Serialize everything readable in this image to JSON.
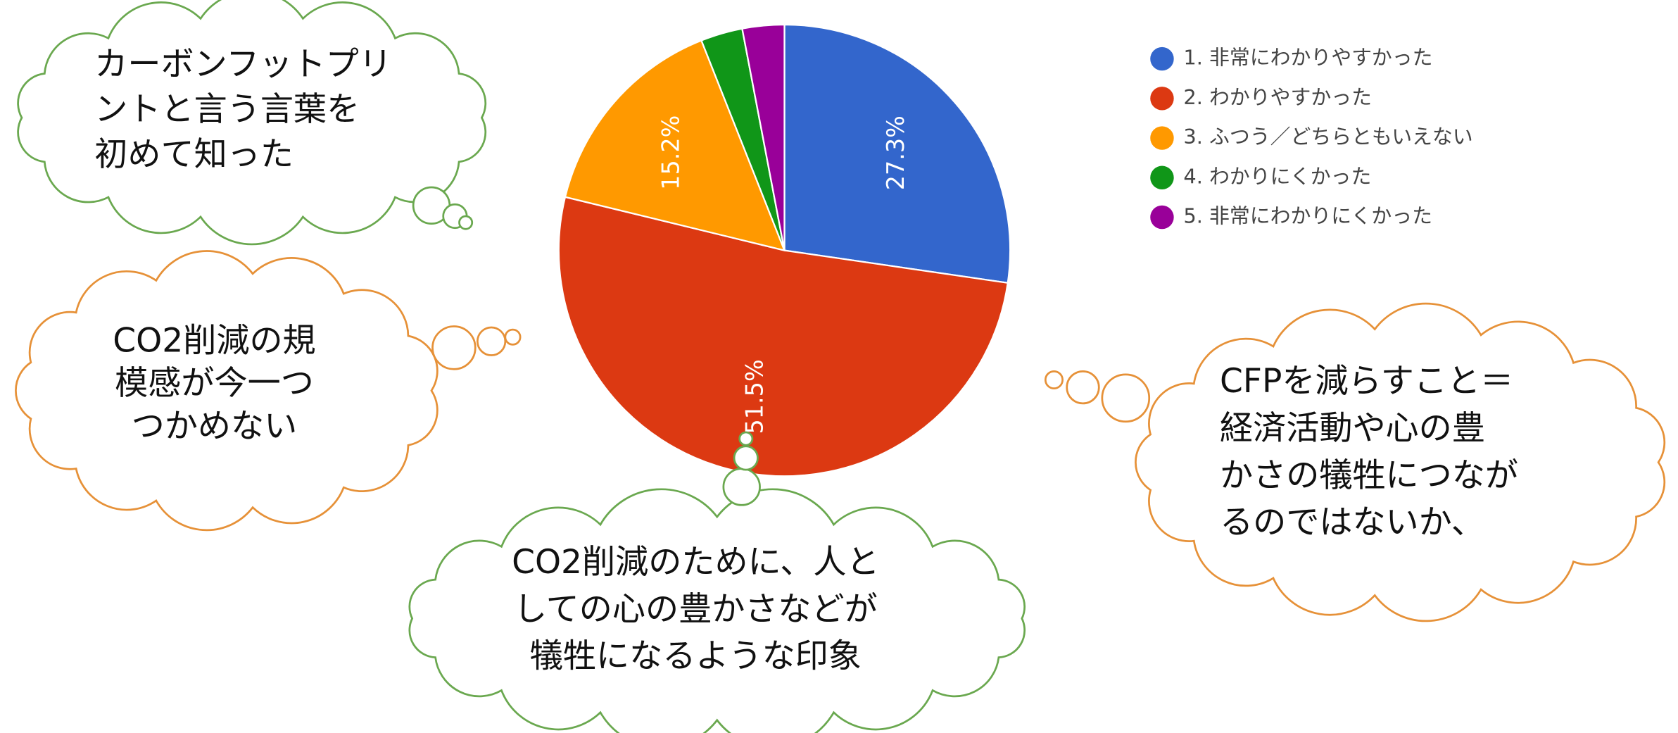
{
  "chart_data": {
    "type": "pie",
    "categories": [
      "1. 非常にわかりやすかった",
      "2. わかりやすかった",
      "3. ふつう／どちらともいえない",
      "4. わかりにくかった",
      "5. 非常にわかりにくかった"
    ],
    "values": [
      27.3,
      51.5,
      15.2,
      3.0,
      3.0
    ],
    "value_labels": [
      "27.3%",
      "51.5%",
      "15.2%",
      null,
      null
    ],
    "colors": [
      "#3366cc",
      "#dc3912",
      "#ff9900",
      "#109618",
      "#990099"
    ],
    "legend": "right"
  },
  "annotations": [
    {
      "lines": [
        "カーボンフットプリ",
        "ントと言う言葉を",
        "初めて知った"
      ],
      "color": "#6aa84f"
    },
    {
      "lines": [
        "CO2削減の規",
        "模感が今一つ",
        "つかめない"
      ],
      "color": "#e69138"
    },
    {
      "lines": [
        "CFPを減らすこと＝",
        "経済活動や心の豊",
        "かさの犠牲につなが",
        "るのではないか、"
      ],
      "color": "#e69138"
    },
    {
      "lines": [
        "CO2削減のために、人と",
        "しての心の豊かさなどが",
        "犠牲になるような印象"
      ],
      "color": "#6aa84f"
    }
  ]
}
